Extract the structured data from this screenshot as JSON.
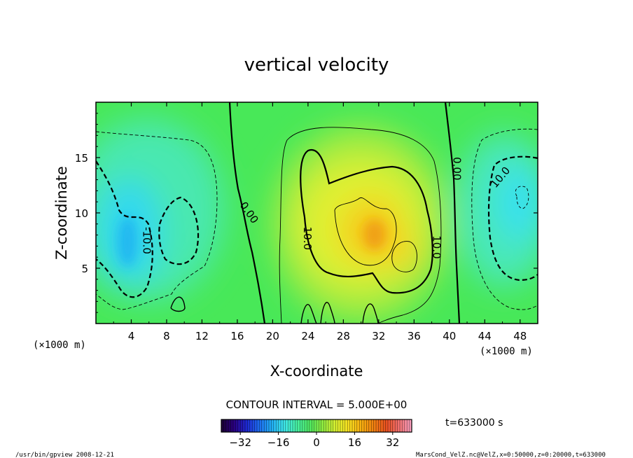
{
  "chart_data": {
    "type": "heatmap",
    "title": "vertical velocity",
    "xlabel": "X-coordinate",
    "ylabel": "Z-coordinate",
    "x_unit_left": "(×1000 m)",
    "x_unit_right": "(×1000 m)",
    "xlim": [
      0,
      50
    ],
    "ylim": [
      0,
      20
    ],
    "x_ticks": [
      4,
      8,
      12,
      16,
      20,
      24,
      28,
      32,
      36,
      40,
      44,
      48
    ],
    "y_ticks": [
      5,
      10,
      15
    ],
    "contour_interval_label": "CONTOUR INTERVAL = 5.000E+00",
    "time_label": "t=633000 s",
    "colorbar": {
      "ticks": [
        -32,
        -16,
        0,
        16,
        32
      ],
      "range": [
        -40,
        40
      ],
      "colors": [
        "#1a0033",
        "#2a0080",
        "#1e28d0",
        "#1e6ef0",
        "#22b0f5",
        "#40e8e8",
        "#48f0a0",
        "#50e860",
        "#90ec40",
        "#d8f030",
        "#f8e020",
        "#f8b010",
        "#f08010",
        "#e85020",
        "#f07070",
        "#f8a0c0"
      ]
    },
    "contour_labels": [
      {
        "text": "-10.0",
        "x": 5.7,
        "z": 7.5,
        "rotate": 90
      },
      {
        "text": "0.00",
        "x": 17.3,
        "z": 10.0,
        "rotate": 55
      },
      {
        "text": "10.0",
        "x": 23.9,
        "z": 7.7,
        "rotate": 90
      },
      {
        "text": "10.0",
        "x": 38.5,
        "z": 6.9,
        "rotate": 90
      },
      {
        "text": "0.00",
        "x": 40.8,
        "z": 14.0,
        "rotate": 90
      },
      {
        "text": "10.0",
        "x": 45.8,
        "z": 13.2,
        "rotate": -50
      }
    ],
    "centers": [
      {
        "name": "updraft",
        "x": 30.5,
        "z": 8.0,
        "peak": 27
      },
      {
        "name": "updraft-secondary",
        "x": 34.5,
        "z": 6.0,
        "peak": 18
      },
      {
        "name": "downdraft-left",
        "x": 3.8,
        "z": 8.5,
        "peak": -20
      },
      {
        "name": "downdraft-right",
        "x": 47.5,
        "z": 11.5,
        "peak": -17
      }
    ]
  },
  "footer": {
    "left": "/usr/bin/gpview   2008-12-21",
    "right": "MarsCond_VelZ.nc@VelZ,x=0:50000,z=0:20000,t=633000"
  }
}
